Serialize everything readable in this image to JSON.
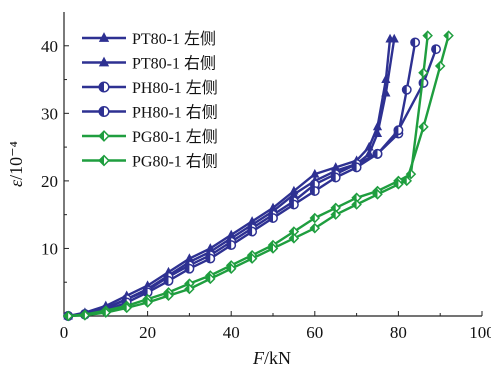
{
  "chart_data": {
    "type": "line",
    "xlabel": "F/kN",
    "ylabel": "ε/10⁻⁴",
    "xlim": [
      0,
      100
    ],
    "ylim": [
      0,
      45
    ],
    "x_ticks": [
      "0",
      "20",
      "40",
      "60",
      "80",
      "100"
    ],
    "y_ticks": [
      "10",
      "20",
      "30",
      "40"
    ],
    "grid": false,
    "legend_position": "top-left",
    "series": [
      {
        "name": "PT80-1 左侧",
        "color": "#2e3192",
        "marker": "triangle",
        "points": [
          [
            1,
            0
          ],
          [
            5,
            0.5
          ],
          [
            10,
            1.5
          ],
          [
            15,
            3
          ],
          [
            20,
            4.5
          ],
          [
            25,
            6.5
          ],
          [
            30,
            8.5
          ],
          [
            35,
            10
          ],
          [
            40,
            12
          ],
          [
            45,
            14
          ],
          [
            50,
            16
          ],
          [
            55,
            18.5
          ],
          [
            60,
            21
          ],
          [
            65,
            22
          ],
          [
            70,
            23
          ],
          [
            73,
            25
          ],
          [
            75,
            28
          ],
          [
            77,
            35
          ],
          [
            78,
            41
          ]
        ]
      },
      {
        "name": "PT80-1 右侧",
        "color": "#2e3192",
        "marker": "triangle",
        "points": [
          [
            1,
            0
          ],
          [
            5,
            0.4
          ],
          [
            10,
            1.2
          ],
          [
            15,
            2.5
          ],
          [
            20,
            4
          ],
          [
            25,
            6
          ],
          [
            30,
            8
          ],
          [
            35,
            9.5
          ],
          [
            40,
            11.5
          ],
          [
            45,
            13.5
          ],
          [
            50,
            15.5
          ],
          [
            55,
            18
          ],
          [
            60,
            20
          ],
          [
            65,
            21.5
          ],
          [
            70,
            22.5
          ],
          [
            73,
            24
          ],
          [
            75,
            27
          ],
          [
            77,
            33
          ],
          [
            79,
            41
          ]
        ]
      },
      {
        "name": "PH80-1 左侧",
        "color": "#2e3192",
        "marker": "circle-half",
        "points": [
          [
            1,
            0
          ],
          [
            5,
            0.3
          ],
          [
            10,
            1
          ],
          [
            15,
            2.5
          ],
          [
            20,
            3.8
          ],
          [
            25,
            5.8
          ],
          [
            30,
            7.5
          ],
          [
            35,
            9
          ],
          [
            40,
            11
          ],
          [
            45,
            13
          ],
          [
            50,
            15
          ],
          [
            55,
            17
          ],
          [
            60,
            19.5
          ],
          [
            65,
            21
          ],
          [
            70,
            22.5
          ],
          [
            75,
            24
          ],
          [
            80,
            27
          ],
          [
            82,
            33.5
          ],
          [
            84,
            40.5
          ]
        ]
      },
      {
        "name": "PH80-1 右侧",
        "color": "#2e3192",
        "marker": "circle-half",
        "points": [
          [
            1,
            0
          ],
          [
            5,
            0.2
          ],
          [
            10,
            0.8
          ],
          [
            15,
            2
          ],
          [
            20,
            3.5
          ],
          [
            25,
            5.2
          ],
          [
            30,
            7
          ],
          [
            35,
            8.5
          ],
          [
            40,
            10.5
          ],
          [
            45,
            12.5
          ],
          [
            50,
            14.5
          ],
          [
            55,
            16.5
          ],
          [
            60,
            18.5
          ],
          [
            65,
            20.5
          ],
          [
            70,
            22
          ],
          [
            75,
            24
          ],
          [
            80,
            27.5
          ],
          [
            86,
            34.5
          ],
          [
            89,
            39.5
          ]
        ]
      },
      {
        "name": "PG80-1 左侧",
        "color": "#1f9e3f",
        "marker": "diamond-half",
        "points": [
          [
            1,
            0
          ],
          [
            5,
            0.2
          ],
          [
            10,
            0.8
          ],
          [
            15,
            1.5
          ],
          [
            20,
            2.5
          ],
          [
            25,
            3.5
          ],
          [
            30,
            4.8
          ],
          [
            35,
            6
          ],
          [
            40,
            7.5
          ],
          [
            45,
            9
          ],
          [
            50,
            10.5
          ],
          [
            55,
            12.5
          ],
          [
            60,
            14.5
          ],
          [
            65,
            16
          ],
          [
            70,
            17.5
          ],
          [
            75,
            18.5
          ],
          [
            80,
            20
          ],
          [
            83,
            21
          ],
          [
            86,
            36
          ],
          [
            87,
            41.5
          ]
        ]
      },
      {
        "name": "PG80-1 右侧",
        "color": "#1f9e3f",
        "marker": "diamond-half",
        "points": [
          [
            1,
            0
          ],
          [
            5,
            0.1
          ],
          [
            10,
            0.5
          ],
          [
            15,
            1.2
          ],
          [
            20,
            2
          ],
          [
            25,
            3
          ],
          [
            30,
            4
          ],
          [
            35,
            5.5
          ],
          [
            40,
            7
          ],
          [
            45,
            8.5
          ],
          [
            50,
            10
          ],
          [
            55,
            11.5
          ],
          [
            60,
            13
          ],
          [
            65,
            15
          ],
          [
            70,
            16.5
          ],
          [
            75,
            18
          ],
          [
            80,
            19.5
          ],
          [
            82,
            20
          ],
          [
            86,
            28
          ],
          [
            90,
            37
          ],
          [
            92,
            41.5
          ]
        ]
      }
    ]
  }
}
